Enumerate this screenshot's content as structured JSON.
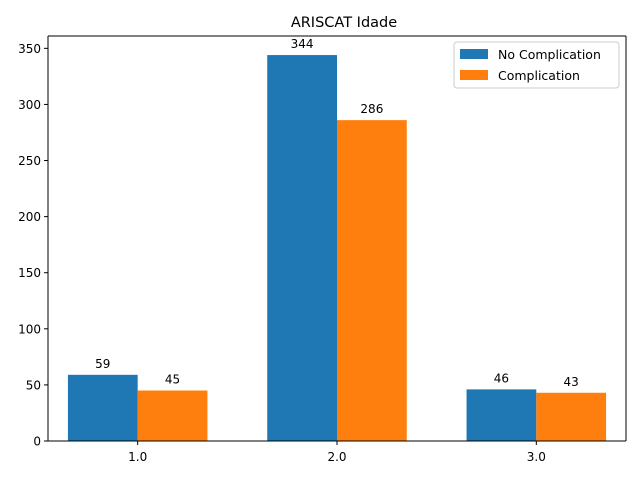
{
  "chart_data": {
    "type": "bar",
    "title": "ARISCAT Idade",
    "xlabel": "",
    "ylabel": "",
    "categories": [
      "1.0",
      "2.0",
      "3.0"
    ],
    "series": [
      {
        "name": "No Complication",
        "values": [
          59,
          344,
          46
        ],
        "color": "#1f77b4"
      },
      {
        "name": "Complication",
        "values": [
          45,
          286,
          43
        ],
        "color": "#ff7f0e"
      }
    ],
    "ylim": [
      0,
      361
    ],
    "yticks": [
      0,
      50,
      100,
      150,
      200,
      250,
      300,
      350
    ],
    "grid": false,
    "legend_position": "upper right"
  }
}
